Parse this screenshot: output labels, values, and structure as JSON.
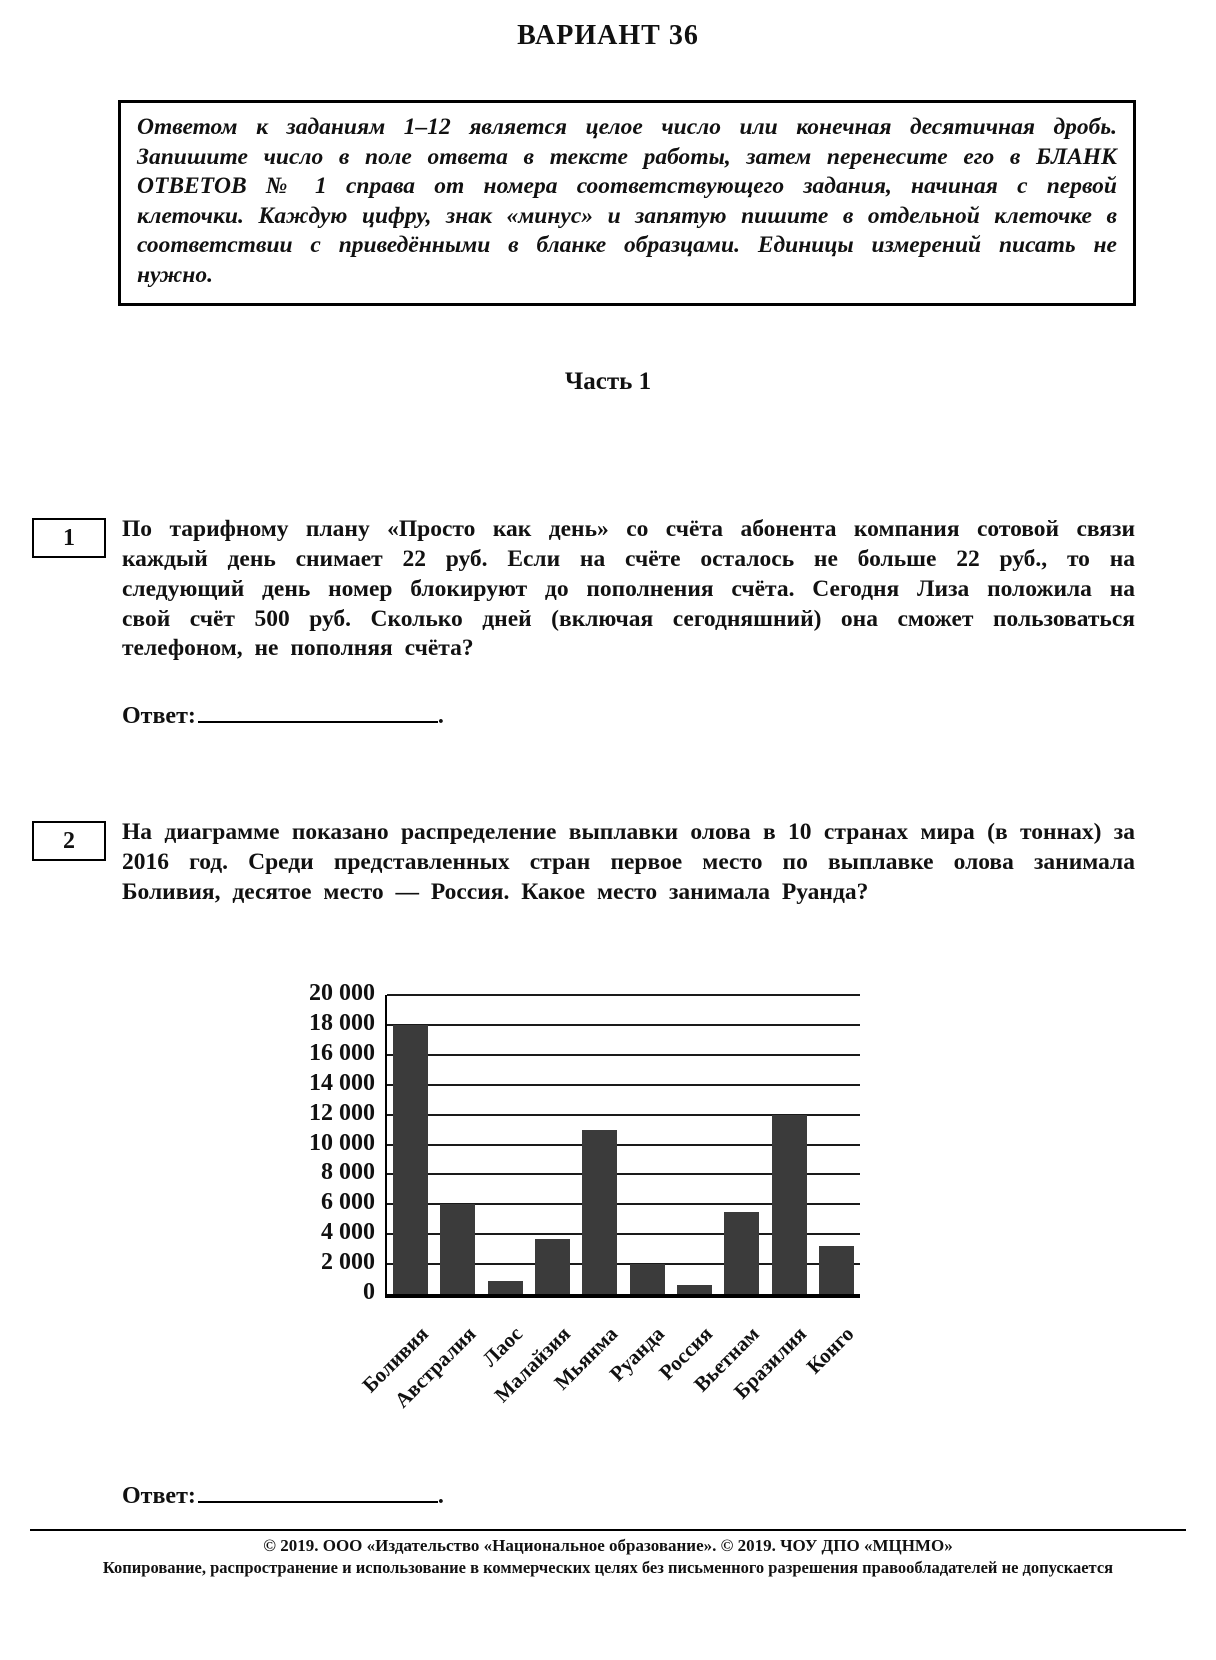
{
  "page": {
    "title": "ВАРИАНТ 36"
  },
  "instruction_box": {
    "text": "Ответом к заданиям 1–12 является целое число или конечная десятичная дробь. Запишите число в поле ответа в тексте работы, затем перенесите его в БЛАНК ОТВЕТОВ № 1 справа от номера соответствующего задания, начиная с первой клеточки. Каждую цифру, знак «минус» и запятую пишите в отдельной клеточке в соответствии с приведёнными в бланке образцами. Единицы измерений писать не нужно."
  },
  "part_heading": "Часть 1",
  "problems": [
    {
      "number": "1",
      "text": "По тарифному плану «Просто как день» со счёта абонента компания сотовой связи каждый день снимает 22 руб. Если на счёте осталось не больше 22 руб., то на следующий день номер блокируют до пополнения счёта. Сегодня Лиза положила на свой счёт 500 руб. Сколько дней (включая сегодняшний) она сможет пользоваться телефоном, не пополняя счёта?",
      "answer_label": "Ответ:",
      "answer_period": "."
    },
    {
      "number": "2",
      "text": "На диаграмме показано распределение выплавки олова в 10 странах мира (в тоннах) за 2016 год. Среди представленных стран первое место по выплавке олова занимала Боливия, десятое место — Россия. Какое место занимала Руанда?",
      "answer_label": "Ответ:",
      "answer_period": "."
    }
  ],
  "chart_data": {
    "type": "bar",
    "title": "",
    "xlabel": "",
    "ylabel": "",
    "categories": [
      "Боливия",
      "Австралия",
      "Лаос",
      "Малайзия",
      "Мьянма",
      "Руанда",
      "Россия",
      "Вьетнам",
      "Бразилия",
      "Конго"
    ],
    "values": [
      18000,
      6000,
      900,
      3700,
      11000,
      2000,
      600,
      5500,
      12000,
      3200
    ],
    "ylim": [
      0,
      20000
    ],
    "ytick_step": 2000,
    "ytick_labels": [
      "0",
      "2 000",
      "4 000",
      "6 000",
      "8 000",
      "10 000",
      "12 000",
      "14 000",
      "16 000",
      "18 000",
      "20 000"
    ],
    "grid": true,
    "legend": false,
    "bar_color": "#3b3b3b"
  },
  "footer": {
    "line1": "© 2019. ООО «Издательство «Национальное образование». © 2019. ЧОУ ДПО «МЦНМО»",
    "line2": "Копирование, распространение и использование в коммерческих целях без письменного разрешения правообладателей не допускается"
  }
}
